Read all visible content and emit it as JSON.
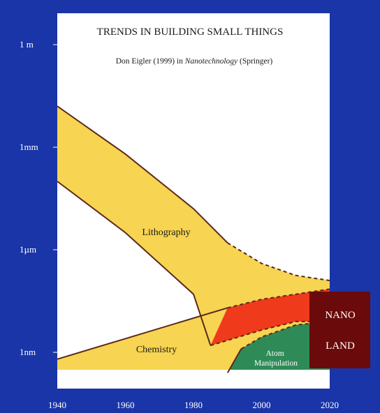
{
  "chart_data": {
    "type": "area",
    "title": "TRENDS IN BUILDING SMALL THINGS",
    "subtitle": {
      "before": "Don Eigler (1999) in ",
      "italic": "Nanotechnology",
      "after": " (Springer)"
    },
    "x_ticks": [
      "1940",
      "1960",
      "1980",
      "2000",
      "2020"
    ],
    "y_ticks": [
      {
        "label": "1 m",
        "log10_m": 0
      },
      {
        "label": "1mm",
        "log10_m": -3
      },
      {
        "label": "1µm",
        "log10_m": -6
      },
      {
        "label": "1nm",
        "log10_m": -9
      }
    ],
    "xlim": [
      1940,
      2020
    ],
    "series": [
      {
        "name": "Lithography",
        "color": "#f7d451",
        "upper": [
          [
            1940,
            -1.8
          ],
          [
            1960,
            -3.2
          ],
          [
            1980,
            -4.8
          ],
          [
            1990,
            -5.8
          ],
          [
            2000,
            -6.4
          ],
          [
            2010,
            -6.75
          ],
          [
            2020,
            -6.9
          ]
        ],
        "lower": [
          [
            1940,
            -4.0
          ],
          [
            1960,
            -5.5
          ],
          [
            1980,
            -7.3
          ],
          [
            1985,
            -8.8
          ],
          [
            2000,
            -8.35
          ],
          [
            2010,
            -8.1
          ],
          [
            2020,
            -8.1
          ]
        ],
        "dashed_after": 1992
      },
      {
        "name": "Chemistry",
        "color": "#f7d451",
        "upper": [
          [
            1940,
            -9.2
          ],
          [
            1960,
            -8.6
          ],
          [
            1980,
            -8.0
          ],
          [
            1990,
            -7.7
          ],
          [
            2000,
            -7.45
          ],
          [
            2020,
            -7.15
          ]
        ]
      },
      {
        "name": "Atom Manipulation",
        "color": "#2e8b57",
        "upper": [
          [
            1990,
            -9.6
          ],
          [
            1994,
            -8.9
          ],
          [
            2000,
            -8.55
          ],
          [
            2010,
            -8.2
          ],
          [
            2020,
            -8.1
          ]
        ]
      },
      {
        "name": "",
        "color": "#f03a1c"
      }
    ],
    "annotation": {
      "lines": [
        "NANO",
        "LAND"
      ],
      "color": "#6b0a0a"
    },
    "colors": {
      "background": "#1a35a8",
      "plot": "#ffffff",
      "axis_text": "#ffffff",
      "outline": "#5a2a1a"
    }
  }
}
